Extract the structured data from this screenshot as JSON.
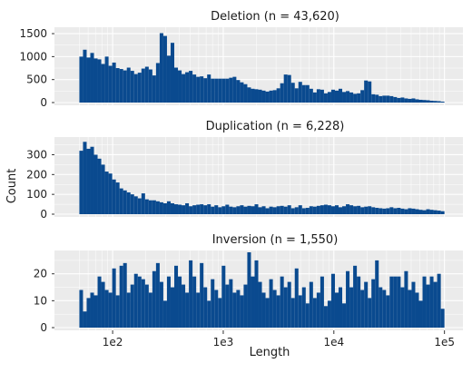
{
  "figure": {
    "xlabel": "Length",
    "ylabel": "Count",
    "bar_color": "#0a4a8f",
    "panel_bg": "#ebebeb",
    "grid_color": "#ffffff"
  },
  "chart_data": [
    {
      "type": "bar",
      "title": "Deletion (n = 43,620)",
      "xlabel": "Length",
      "ylabel": "Count",
      "x_scale": "log10",
      "xlim": [
        50,
        100000
      ],
      "ylim": [
        0,
        1600
      ],
      "yticks": [
        0,
        500,
        1000,
        1500
      ],
      "xticks": [
        "1e2",
        "1e3",
        "1e4",
        "1e5"
      ],
      "bins": 100,
      "values": [
        1000,
        1150,
        980,
        1080,
        960,
        940,
        840,
        1000,
        800,
        870,
        750,
        730,
        700,
        760,
        690,
        620,
        650,
        740,
        780,
        720,
        590,
        860,
        1510,
        1450,
        1020,
        1300,
        760,
        700,
        620,
        660,
        690,
        610,
        560,
        570,
        530,
        610,
        520,
        520,
        520,
        520,
        520,
        540,
        560,
        490,
        440,
        400,
        330,
        300,
        290,
        280,
        260,
        240,
        260,
        270,
        310,
        420,
        610,
        600,
        430,
        310,
        450,
        380,
        380,
        300,
        220,
        290,
        280,
        200,
        230,
        280,
        260,
        300,
        230,
        250,
        220,
        190,
        200,
        270,
        480,
        460,
        180,
        170,
        140,
        150,
        150,
        140,
        120,
        100,
        110,
        90,
        80,
        90,
        70,
        60,
        55,
        50,
        40,
        35,
        30,
        20
      ]
    },
    {
      "type": "bar",
      "title": "Duplication (n = 6,228)",
      "xlabel": "Length",
      "ylabel": "Count",
      "x_scale": "log10",
      "xlim": [
        50,
        100000
      ],
      "ylim": [
        0,
        380
      ],
      "yticks": [
        0,
        100,
        200,
        300
      ],
      "xticks": [
        "1e2",
        "1e3",
        "1e4",
        "1e5"
      ],
      "bins": 100,
      "values": [
        320,
        365,
        330,
        340,
        300,
        280,
        250,
        215,
        205,
        175,
        160,
        130,
        120,
        110,
        100,
        90,
        80,
        105,
        75,
        70,
        70,
        65,
        60,
        55,
        65,
        55,
        50,
        48,
        45,
        55,
        40,
        45,
        48,
        50,
        45,
        50,
        38,
        45,
        35,
        40,
        48,
        38,
        35,
        40,
        45,
        38,
        42,
        40,
        50,
        35,
        40,
        30,
        38,
        35,
        40,
        42,
        38,
        45,
        30,
        35,
        45,
        30,
        32,
        40,
        38,
        42,
        45,
        48,
        45,
        40,
        45,
        35,
        40,
        50,
        45,
        40,
        42,
        35,
        38,
        40,
        35,
        32,
        30,
        28,
        30,
        35,
        30,
        32,
        28,
        25,
        30,
        28,
        25,
        22,
        20,
        25,
        22,
        20,
        18,
        15
      ]
    },
    {
      "type": "bar",
      "title": "Inversion (n = 1,550)",
      "xlabel": "Length",
      "ylabel": "Count",
      "x_scale": "log10",
      "xlim": [
        50,
        100000
      ],
      "ylim": [
        0,
        28
      ],
      "yticks": [
        0,
        10,
        20
      ],
      "xticks": [
        "1e2",
        "1e3",
        "1e4",
        "1e5"
      ],
      "bins": 100,
      "values": [
        14,
        6,
        11,
        13,
        12,
        19,
        17,
        14,
        13,
        22,
        12,
        23,
        24,
        13,
        16,
        20,
        19,
        18,
        16,
        13,
        21,
        24,
        17,
        10,
        19,
        15,
        23,
        19,
        16,
        13,
        25,
        19,
        13,
        24,
        15,
        10,
        18,
        14,
        11,
        23,
        16,
        18,
        13,
        14,
        12,
        16,
        28,
        19,
        25,
        17,
        13,
        11,
        18,
        14,
        12,
        19,
        15,
        17,
        11,
        22,
        12,
        15,
        9,
        17,
        11,
        13,
        19,
        8,
        10,
        20,
        13,
        15,
        9,
        21,
        15,
        23,
        19,
        14,
        17,
        11,
        18,
        25,
        15,
        14,
        12,
        19,
        19,
        19,
        15,
        21,
        14,
        17,
        13,
        10,
        19,
        16,
        19,
        17,
        20,
        7
      ]
    }
  ]
}
